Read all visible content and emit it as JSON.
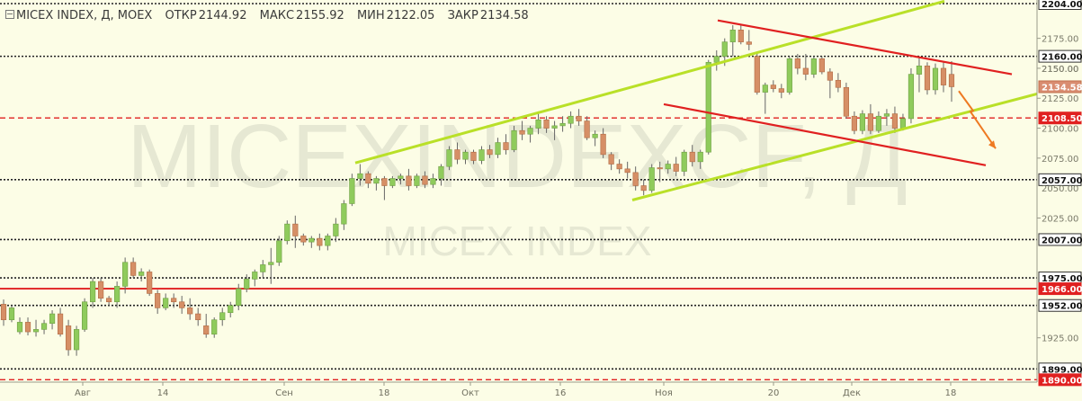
{
  "header": {
    "symbol": "MICEX INDEX, Д, MOEX",
    "open_label": "ОТКР",
    "open": "2144.92",
    "high_label": "МАКС",
    "high": "2155.92",
    "low_label": "МИН",
    "low": "2122.05",
    "close_label": "ЗАКР",
    "close": "2134.58"
  },
  "watermark": {
    "big": "MICEXINDEXСF, Д",
    "small": "MICEX INDEX"
  },
  "chart_data": {
    "type": "candlestick",
    "ylim": [
      1888,
      2207
    ],
    "y_ticks": [
      1925,
      2025,
      2075,
      2100,
      2125,
      2150,
      2175
    ],
    "level_labels": [
      "2204.00",
      "2160.00",
      "2150.00",
      "2134.58",
      "2108.50",
      "2057.00",
      "2050.00",
      "2007.00",
      "1975.00",
      "1966.00",
      "1952.00",
      "1899.00",
      "1890.00"
    ],
    "x_labels": [
      "Авг",
      "14",
      "Сен",
      "18",
      "Окт",
      "16",
      "Ноя",
      "20",
      "Дек",
      "18"
    ],
    "levels": [
      {
        "value": 2204,
        "label": "2204.00",
        "style": "black-dotted"
      },
      {
        "value": 2160,
        "label": "2160.00",
        "style": "black-dotted"
      },
      {
        "value": 2057,
        "label": "2057.00",
        "style": "black-dotted"
      },
      {
        "value": 2007,
        "label": "2007.00",
        "style": "black-dotted"
      },
      {
        "value": 1975,
        "label": "1975.00",
        "style": "black-dotted"
      },
      {
        "value": 1952,
        "label": "1952.00",
        "style": "black-dotted"
      },
      {
        "value": 1899,
        "label": "1899.00",
        "style": "black-dotted"
      },
      {
        "value": 2108.5,
        "label": "2108.50",
        "style": "red-dashed"
      },
      {
        "value": 1890,
        "label": "1890.00",
        "style": "red-dashed"
      },
      {
        "value": 1966,
        "label": "1966.00",
        "style": "red-solid"
      }
    ],
    "last_price": 2134.58,
    "candles": [
      [
        1953,
        1957,
        1935,
        1940
      ],
      [
        1940,
        1952,
        1938,
        1950
      ],
      [
        1930,
        1942,
        1928,
        1938
      ],
      [
        1938,
        1942,
        1927,
        1930
      ],
      [
        1930,
        1940,
        1926,
        1932
      ],
      [
        1932,
        1940,
        1928,
        1937
      ],
      [
        1937,
        1948,
        1932,
        1945
      ],
      [
        1945,
        1950,
        1926,
        1928
      ],
      [
        1935,
        1940,
        1910,
        1915
      ],
      [
        1915,
        1935,
        1910,
        1932
      ],
      [
        1932,
        1958,
        1930,
        1955
      ],
      [
        1955,
        1975,
        1950,
        1972
      ],
      [
        1972,
        1975,
        1955,
        1958
      ],
      [
        1958,
        1960,
        1952,
        1955
      ],
      [
        1955,
        1972,
        1950,
        1968
      ],
      [
        1968,
        1992,
        1962,
        1988
      ],
      [
        1988,
        1992,
        1975,
        1977
      ],
      [
        1977,
        1983,
        1972,
        1980
      ],
      [
        1980,
        1982,
        1960,
        1962
      ],
      [
        1962,
        1965,
        1945,
        1950
      ],
      [
        1950,
        1962,
        1948,
        1958
      ],
      [
        1958,
        1962,
        1950,
        1955
      ],
      [
        1955,
        1960,
        1945,
        1950
      ],
      [
        1950,
        1958,
        1940,
        1945
      ],
      [
        1945,
        1950,
        1935,
        1940
      ],
      [
        1935,
        1945,
        1925,
        1928
      ],
      [
        1928,
        1942,
        1925,
        1940
      ],
      [
        1940,
        1950,
        1935,
        1946
      ],
      [
        1946,
        1955,
        1942,
        1952
      ],
      [
        1952,
        1970,
        1948,
        1966
      ],
      [
        1966,
        1978,
        1963,
        1974
      ],
      [
        1974,
        1982,
        1968,
        1980
      ],
      [
        1980,
        1990,
        1975,
        1986
      ],
      [
        1986,
        2000,
        1970,
        1988
      ],
      [
        1988,
        2010,
        1985,
        2006
      ],
      [
        2006,
        2023,
        2003,
        2020
      ],
      [
        2020,
        2027,
        2000,
        2010
      ],
      [
        2010,
        2012,
        2002,
        2005
      ],
      [
        2005,
        2010,
        2000,
        2008
      ],
      [
        2008,
        2012,
        1998,
        2002
      ],
      [
        2002,
        2012,
        1998,
        2010
      ],
      [
        2010,
        2025,
        2005,
        2020
      ],
      [
        2020,
        2040,
        2015,
        2037
      ],
      [
        2037,
        2062,
        2035,
        2058
      ],
      [
        2058,
        2070,
        2052,
        2062
      ],
      [
        2062,
        2064,
        2050,
        2054
      ],
      [
        2054,
        2060,
        2048,
        2058
      ],
      [
        2058,
        2060,
        2040,
        2052
      ],
      [
        2052,
        2060,
        2050,
        2058
      ],
      [
        2058,
        2062,
        2053,
        2060
      ],
      [
        2060,
        2066,
        2048,
        2052
      ],
      [
        2052,
        2062,
        2050,
        2060
      ],
      [
        2060,
        2064,
        2050,
        2053
      ],
      [
        2053,
        2062,
        2050,
        2058
      ],
      [
        2058,
        2070,
        2052,
        2068
      ],
      [
        2068,
        2085,
        2065,
        2082
      ],
      [
        2082,
        2088,
        2070,
        2074
      ],
      [
        2074,
        2082,
        2070,
        2080
      ],
      [
        2080,
        2082,
        2070,
        2073
      ],
      [
        2073,
        2085,
        2070,
        2082
      ],
      [
        2082,
        2086,
        2075,
        2078
      ],
      [
        2078,
        2092,
        2075,
        2088
      ],
      [
        2088,
        2095,
        2078,
        2082
      ],
      [
        2082,
        2102,
        2080,
        2098
      ],
      [
        2098,
        2106,
        2090,
        2095
      ],
      [
        2095,
        2102,
        2088,
        2100
      ],
      [
        2100,
        2112,
        2095,
        2107
      ],
      [
        2107,
        2110,
        2096,
        2100
      ],
      [
        2100,
        2106,
        2090,
        2102
      ],
      [
        2102,
        2110,
        2097,
        2104
      ],
      [
        2104,
        2114,
        2100,
        2110
      ],
      [
        2110,
        2116,
        2102,
        2106
      ],
      [
        2106,
        2110,
        2090,
        2092
      ],
      [
        2092,
        2098,
        2085,
        2095
      ],
      [
        2095,
        2100,
        2075,
        2078
      ],
      [
        2078,
        2080,
        2065,
        2070
      ],
      [
        2070,
        2074,
        2062,
        2066
      ],
      [
        2066,
        2072,
        2058,
        2063
      ],
      [
        2063,
        2068,
        2048,
        2052
      ],
      [
        2052,
        2057,
        2044,
        2048
      ],
      [
        2048,
        2070,
        2046,
        2067
      ],
      [
        2067,
        2072,
        2055,
        2066
      ],
      [
        2066,
        2073,
        2062,
        2070
      ],
      [
        2070,
        2076,
        2060,
        2064
      ],
      [
        2064,
        2082,
        2060,
        2080
      ],
      [
        2080,
        2086,
        2068,
        2072
      ],
      [
        2072,
        2082,
        2066,
        2080
      ],
      [
        2080,
        2157,
        2078,
        2155
      ],
      [
        2155,
        2165,
        2148,
        2160
      ],
      [
        2160,
        2175,
        2152,
        2172
      ],
      [
        2172,
        2186,
        2160,
        2182
      ],
      [
        2182,
        2187,
        2170,
        2172
      ],
      [
        2172,
        2182,
        2165,
        2170
      ],
      [
        2160,
        2163,
        2128,
        2130
      ],
      [
        2130,
        2138,
        2112,
        2136
      ],
      [
        2136,
        2140,
        2130,
        2133
      ],
      [
        2133,
        2137,
        2125,
        2130
      ],
      [
        2130,
        2160,
        2128,
        2158
      ],
      [
        2158,
        2162,
        2145,
        2150
      ],
      [
        2150,
        2162,
        2140,
        2145
      ],
      [
        2145,
        2160,
        2142,
        2158
      ],
      [
        2158,
        2160,
        2145,
        2147
      ],
      [
        2147,
        2150,
        2125,
        2140
      ],
      [
        2140,
        2146,
        2130,
        2134
      ],
      [
        2134,
        2138,
        2108,
        2110
      ],
      [
        2110,
        2114,
        2095,
        2098
      ],
      [
        2098,
        2115,
        2095,
        2112
      ],
      [
        2112,
        2120,
        2095,
        2098
      ],
      [
        2098,
        2114,
        2096,
        2110
      ],
      [
        2110,
        2116,
        2102,
        2112
      ],
      [
        2112,
        2118,
        2096,
        2100
      ],
      [
        2100,
        2112,
        2098,
        2108
      ],
      [
        2108,
        2150,
        2104,
        2145
      ],
      [
        2145,
        2160,
        2130,
        2152
      ],
      [
        2152,
        2155,
        2128,
        2132
      ],
      [
        2132,
        2154,
        2128,
        2150
      ],
      [
        2150,
        2155,
        2130,
        2136
      ],
      [
        2144.92,
        2155.92,
        2122.05,
        2134.58
      ]
    ]
  },
  "colors": {
    "background": "#fcfde6",
    "up_candle": "#8fcb5c",
    "down_candle": "#d68f66",
    "wick": "#666666",
    "support_channel": "#b9e028",
    "resistance_channel": "#e02020",
    "forecast_arrow": "#ee7a22",
    "level_black": "#222222",
    "level_red": "#e02020"
  }
}
